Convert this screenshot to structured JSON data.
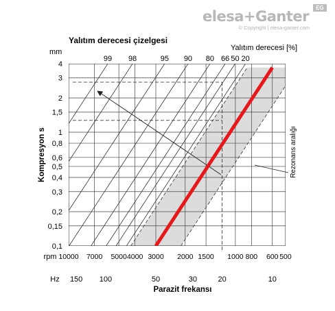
{
  "brand": {
    "logo_text": "elesa+Ganter",
    "badge": "EG",
    "copyright": "© Copyright | elesa-ganter.com"
  },
  "chart_data": {
    "type": "line",
    "title": "Yalıtım derecesi çizelgesi",
    "ylabel": "Kompresyon s",
    "yunit": "mm",
    "xlabel": "Parazit frekansı",
    "x_scale": "log",
    "y_scale": "log",
    "x_unit_rpm": "rpm",
    "x_unit_hz": "Hz",
    "ylim": [
      0.1,
      4
    ],
    "xlim_hz": [
      8.33,
      166.7
    ],
    "y_ticks": [
      {
        "v": 4,
        "label": "4"
      },
      {
        "v": 3,
        "label": "3"
      },
      {
        "v": 2,
        "label": "2"
      },
      {
        "v": 1.5,
        "label": "1,5"
      },
      {
        "v": 1,
        "label": "1"
      },
      {
        "v": 0.8,
        "label": "0,8"
      },
      {
        "v": 0.6,
        "label": "0,6"
      },
      {
        "v": 0.5,
        "label": "0,5"
      },
      {
        "v": 0.4,
        "label": "0,4"
      },
      {
        "v": 0.3,
        "label": "0,3"
      },
      {
        "v": 0.2,
        "label": "0,2"
      },
      {
        "v": 0.15,
        "label": "0,15"
      },
      {
        "v": 0.1,
        "label": "0,1"
      }
    ],
    "rpm_ticks": [
      {
        "v": 10000,
        "label": "10000"
      },
      {
        "v": 7000,
        "label": "7000"
      },
      {
        "v": 5000,
        "label": "5000"
      },
      {
        "v": 4000,
        "label": "4000"
      },
      {
        "v": 3000,
        "label": "3000"
      },
      {
        "v": 2000,
        "label": "2000"
      },
      {
        "v": 1500,
        "label": "1500"
      },
      {
        "v": 1000,
        "label": "1000"
      },
      {
        "v": 800,
        "label": "800"
      },
      {
        "v": 600,
        "label": "600"
      },
      {
        "v": 500,
        "label": "500"
      }
    ],
    "hz_ticks": [
      {
        "v": 150,
        "label": "150"
      },
      {
        "v": 100,
        "label": "100"
      },
      {
        "v": 50,
        "label": "50"
      },
      {
        "v": 30,
        "label": "30"
      },
      {
        "v": 20,
        "label": "20"
      },
      {
        "v": 10,
        "label": "10"
      }
    ],
    "isolation_label": "Yalıtım derecesi [%]",
    "isolation_lines": [
      {
        "label": "99",
        "pct": 99
      },
      {
        "label": "98",
        "pct": 98
      },
      {
        "label": "95",
        "pct": 95
      },
      {
        "label": "90",
        "pct": 90
      },
      {
        "label": "80",
        "pct": 80
      },
      {
        "label": "66",
        "pct": 66
      },
      {
        "label": "50",
        "pct": 50
      },
      {
        "label": "20",
        "pct": 20
      }
    ],
    "resonance_label": "Rezonans aralığı",
    "resonance_line": {
      "x_hz": [
        50,
        10
      ],
      "y_mm": [
        0.1,
        3.7
      ],
      "color": "#e3191b"
    },
    "resonance_band": {
      "upper_hz": [
        70.7,
        14.14
      ],
      "lower_hz": [
        35.36,
        7.07
      ],
      "color": "#dcdcdc"
    },
    "example": {
      "rpm": 1200,
      "y_mm": 2.75,
      "y_low_mm": 1.27
    }
  }
}
